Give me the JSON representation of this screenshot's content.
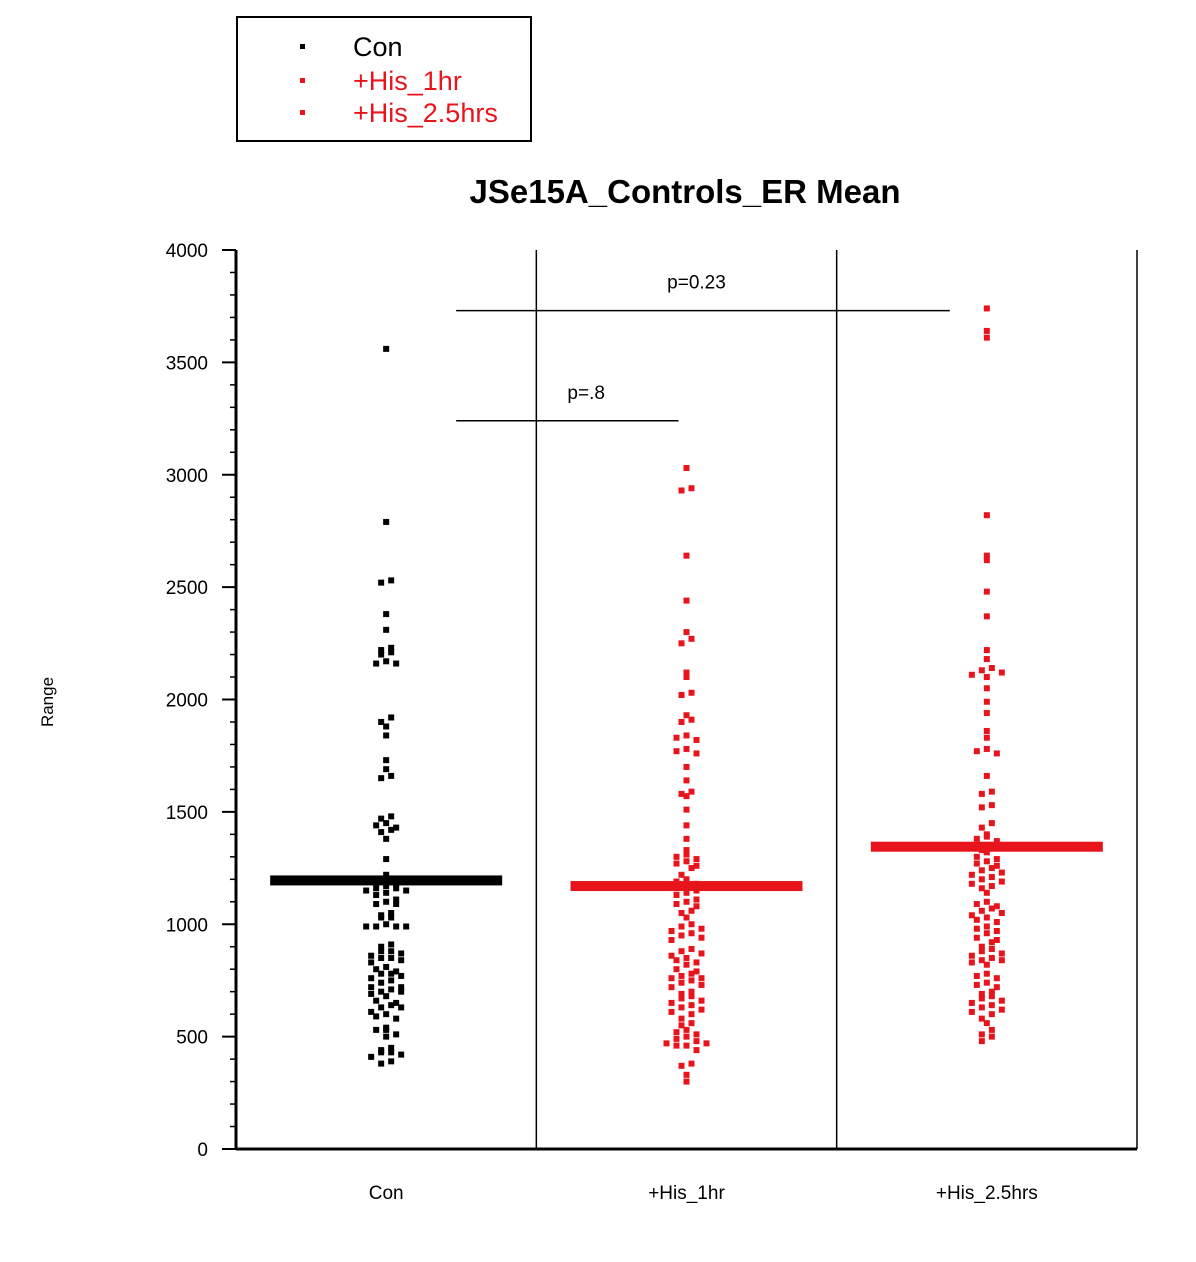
{
  "legend": {
    "items": [
      {
        "label": "Con",
        "color": "#000000"
      },
      {
        "label": "+His_1hr",
        "color": "#e8141c"
      },
      {
        "label": "+His_2.5hrs",
        "color": "#e8141c"
      }
    ]
  },
  "chart_data": {
    "type": "scatter",
    "title": "JSe15A_Controls_ER Mean",
    "xlabel": "",
    "ylabel": "Range",
    "ylim": [
      0,
      4000
    ],
    "yticks": [
      0,
      500,
      1000,
      1500,
      2000,
      2500,
      3000,
      3500,
      4000
    ],
    "categories": [
      "Con",
      "+His_1hr",
      "+His_2.5hrs"
    ],
    "series": [
      {
        "name": "Con",
        "color": "#000000",
        "mean": 1195,
        "values": [
          3560,
          2790,
          2530,
          2520,
          2380,
          2310,
          2230,
          2220,
          2210,
          2200,
          2170,
          2160,
          2160,
          1920,
          1900,
          1880,
          1840,
          1730,
          1690,
          1660,
          1650,
          1480,
          1470,
          1450,
          1440,
          1430,
          1420,
          1410,
          1380,
          1290,
          1220,
          1200,
          1190,
          1180,
          1170,
          1160,
          1160,
          1150,
          1150,
          1140,
          1130,
          1110,
          1100,
          1090,
          1090,
          1050,
          1040,
          1030,
          1030,
          1000,
          990,
          990,
          990,
          990,
          910,
          900,
          880,
          880,
          870,
          860,
          850,
          850,
          840,
          830,
          810,
          800,
          790,
          780,
          780,
          770,
          760,
          750,
          740,
          720,
          720,
          710,
          700,
          700,
          690,
          680,
          660,
          650,
          640,
          630,
          630,
          610,
          600,
          590,
          580,
          540,
          530,
          530,
          510,
          500,
          450,
          440,
          430,
          430,
          420,
          410,
          390,
          380
        ]
      },
      {
        "name": "+His_1hr",
        "color": "#e8141c",
        "mean": 1170,
        "values": [
          3030,
          2940,
          2930,
          2640,
          2440,
          2300,
          2270,
          2250,
          2120,
          2100,
          2030,
          2020,
          1930,
          1910,
          1900,
          1840,
          1830,
          1820,
          1780,
          1770,
          1760,
          1700,
          1640,
          1590,
          1580,
          1570,
          1510,
          1440,
          1380,
          1330,
          1310,
          1300,
          1290,
          1280,
          1270,
          1260,
          1250,
          1220,
          1200,
          1190,
          1180,
          1170,
          1160,
          1150,
          1140,
          1130,
          1110,
          1100,
          1090,
          1080,
          1060,
          1050,
          1030,
          1000,
          990,
          980,
          970,
          960,
          950,
          940,
          930,
          890,
          880,
          870,
          860,
          850,
          840,
          830,
          820,
          800,
          790,
          780,
          770,
          760,
          760,
          750,
          740,
          730,
          720,
          700,
          690,
          680,
          670,
          660,
          650,
          640,
          630,
          620,
          610,
          600,
          580,
          560,
          550,
          530,
          520,
          510,
          500,
          490,
          480,
          470,
          470,
          460,
          460,
          440,
          380,
          370,
          330,
          300
        ]
      },
      {
        "name": "+His_2.5hrs",
        "color": "#e8141c",
        "mean": 1345,
        "values": [
          3740,
          3640,
          3610,
          2820,
          2640,
          2620,
          2480,
          2370,
          2220,
          2180,
          2140,
          2130,
          2120,
          2110,
          2100,
          2050,
          1990,
          1940,
          1860,
          1830,
          1780,
          1770,
          1760,
          1660,
          1590,
          1580,
          1530,
          1520,
          1450,
          1430,
          1400,
          1390,
          1380,
          1370,
          1340,
          1330,
          1320,
          1300,
          1290,
          1280,
          1270,
          1260,
          1250,
          1240,
          1230,
          1220,
          1210,
          1200,
          1190,
          1180,
          1170,
          1160,
          1140,
          1100,
          1090,
          1080,
          1070,
          1060,
          1050,
          1040,
          1030,
          1020,
          1010,
          990,
          980,
          970,
          960,
          940,
          930,
          920,
          900,
          890,
          880,
          870,
          860,
          850,
          840,
          840,
          830,
          820,
          780,
          770,
          760,
          740,
          730,
          720,
          700,
          690,
          680,
          670,
          660,
          650,
          640,
          630,
          620,
          610,
          600,
          580,
          560,
          530,
          510,
          500,
          480
        ]
      }
    ],
    "annotations": [
      {
        "text": "p=.8",
        "from": "Con",
        "to": "+His_1hr",
        "y": 3240
      },
      {
        "text": "p=0.23",
        "from": "Con",
        "to": "+His_2.5hrs",
        "y": 3730
      }
    ],
    "legend_position": "top-left",
    "grid": false
  }
}
